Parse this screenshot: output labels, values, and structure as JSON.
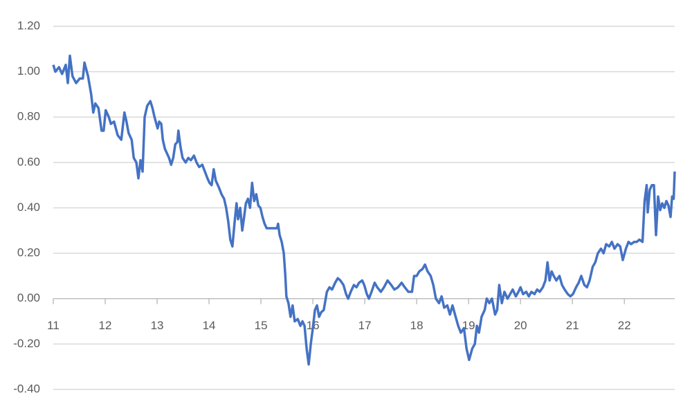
{
  "chart_data": {
    "type": "line",
    "x": [
      11.0,
      11.04,
      11.11,
      11.17,
      11.24,
      11.28,
      11.32,
      11.37,
      11.44,
      11.51,
      11.57,
      11.6,
      11.67,
      11.73,
      11.77,
      11.81,
      11.87,
      11.93,
      11.97,
      12.01,
      12.07,
      12.11,
      12.17,
      12.24,
      12.31,
      12.37,
      12.41,
      12.45,
      12.51,
      12.55,
      12.6,
      12.64,
      12.68,
      12.72,
      12.76,
      12.81,
      12.87,
      12.91,
      12.95,
      13.01,
      13.04,
      13.08,
      13.11,
      13.15,
      13.19,
      13.23,
      13.27,
      13.31,
      13.35,
      13.39,
      13.41,
      13.45,
      13.49,
      13.55,
      13.6,
      13.65,
      13.71,
      13.76,
      13.81,
      13.87,
      13.92,
      13.97,
      14.01,
      14.05,
      14.09,
      14.13,
      14.19,
      14.24,
      14.29,
      14.33,
      14.37,
      14.41,
      14.45,
      14.49,
      14.53,
      14.56,
      14.6,
      14.64,
      14.67,
      14.71,
      14.75,
      14.79,
      14.83,
      14.87,
      14.91,
      14.95,
      14.99,
      15.03,
      15.07,
      15.11,
      15.17,
      15.24,
      15.31,
      15.33,
      15.36,
      15.4,
      15.44,
      15.47,
      15.49,
      15.53,
      15.57,
      15.61,
      15.65,
      15.71,
      15.76,
      15.8,
      15.84,
      15.88,
      15.92,
      15.96,
      16.0,
      16.04,
      16.08,
      16.12,
      16.16,
      16.21,
      16.27,
      16.32,
      16.37,
      16.43,
      16.48,
      16.53,
      16.59,
      16.64,
      16.68,
      16.73,
      16.79,
      16.84,
      16.89,
      16.95,
      16.99,
      17.04,
      17.08,
      17.13,
      17.19,
      17.24,
      17.31,
      17.37,
      17.44,
      17.51,
      17.57,
      17.64,
      17.71,
      17.77,
      17.84,
      17.91,
      17.95,
      18.0,
      18.05,
      18.11,
      18.16,
      18.21,
      18.27,
      18.32,
      18.37,
      18.43,
      18.48,
      18.53,
      18.59,
      18.64,
      18.69,
      18.75,
      18.8,
      18.85,
      18.91,
      18.96,
      19.01,
      19.07,
      19.12,
      19.16,
      19.2,
      19.25,
      19.31,
      19.35,
      19.4,
      19.45,
      19.51,
      19.55,
      19.59,
      19.64,
      19.69,
      19.75,
      19.8,
      19.85,
      19.91,
      19.96,
      20.0,
      20.05,
      20.11,
      20.16,
      20.21,
      20.27,
      20.32,
      20.37,
      20.43,
      20.48,
      20.52,
      20.56,
      20.6,
      20.64,
      20.69,
      20.75,
      20.8,
      20.85,
      20.91,
      20.96,
      21.01,
      21.07,
      21.12,
      21.17,
      21.23,
      21.28,
      21.33,
      21.39,
      21.44,
      21.49,
      21.55,
      21.6,
      21.65,
      21.71,
      21.76,
      21.81,
      21.87,
      21.92,
      21.97,
      22.03,
      22.08,
      22.13,
      22.19,
      22.24,
      22.29,
      22.35,
      22.39,
      22.43,
      22.45,
      22.49,
      22.53,
      22.57,
      22.61,
      22.65,
      22.69,
      22.73,
      22.77,
      22.81,
      22.85,
      22.89,
      22.92,
      22.95,
      22.97
    ],
    "values": [
      1.03,
      1.0,
      1.02,
      0.99,
      1.03,
      0.95,
      1.07,
      0.98,
      0.95,
      0.97,
      0.97,
      1.04,
      0.98,
      0.9,
      0.82,
      0.86,
      0.84,
      0.74,
      0.74,
      0.83,
      0.8,
      0.77,
      0.78,
      0.72,
      0.7,
      0.82,
      0.78,
      0.73,
      0.7,
      0.62,
      0.6,
      0.53,
      0.61,
      0.56,
      0.8,
      0.85,
      0.87,
      0.84,
      0.8,
      0.75,
      0.78,
      0.77,
      0.7,
      0.66,
      0.64,
      0.62,
      0.59,
      0.62,
      0.68,
      0.69,
      0.74,
      0.67,
      0.62,
      0.6,
      0.62,
      0.61,
      0.63,
      0.6,
      0.58,
      0.59,
      0.56,
      0.53,
      0.51,
      0.5,
      0.57,
      0.52,
      0.49,
      0.46,
      0.44,
      0.4,
      0.34,
      0.26,
      0.23,
      0.33,
      0.42,
      0.35,
      0.4,
      0.3,
      0.35,
      0.42,
      0.44,
      0.4,
      0.51,
      0.43,
      0.46,
      0.41,
      0.4,
      0.36,
      0.33,
      0.31,
      0.31,
      0.31,
      0.31,
      0.33,
      0.28,
      0.25,
      0.2,
      0.1,
      0.01,
      -0.02,
      -0.08,
      -0.03,
      -0.1,
      -0.09,
      -0.12,
      -0.1,
      -0.12,
      -0.22,
      -0.29,
      -0.2,
      -0.13,
      -0.05,
      -0.03,
      -0.08,
      -0.06,
      -0.05,
      0.03,
      0.05,
      0.04,
      0.07,
      0.09,
      0.08,
      0.06,
      0.02,
      0.0,
      0.03,
      0.06,
      0.05,
      0.07,
      0.08,
      0.06,
      0.02,
      0.0,
      0.03,
      0.07,
      0.05,
      0.03,
      0.05,
      0.08,
      0.06,
      0.04,
      0.05,
      0.07,
      0.05,
      0.03,
      0.03,
      0.1,
      0.1,
      0.12,
      0.13,
      0.15,
      0.12,
      0.1,
      0.06,
      0.0,
      -0.02,
      0.01,
      -0.04,
      -0.03,
      -0.07,
      -0.03,
      -0.08,
      -0.12,
      -0.15,
      -0.13,
      -0.22,
      -0.27,
      -0.22,
      -0.2,
      -0.12,
      -0.15,
      -0.08,
      -0.05,
      0.0,
      -0.02,
      0.0,
      -0.07,
      -0.05,
      0.06,
      -0.02,
      0.03,
      0.0,
      0.02,
      0.04,
      0.01,
      0.03,
      0.05,
      0.02,
      0.03,
      0.01,
      0.03,
      0.02,
      0.04,
      0.03,
      0.05,
      0.08,
      0.16,
      0.08,
      0.12,
      0.1,
      0.08,
      0.1,
      0.06,
      0.04,
      0.02,
      0.01,
      0.02,
      0.05,
      0.07,
      0.1,
      0.06,
      0.05,
      0.08,
      0.14,
      0.16,
      0.2,
      0.22,
      0.2,
      0.24,
      0.23,
      0.25,
      0.22,
      0.24,
      0.23,
      0.17,
      0.22,
      0.25,
      0.24,
      0.25,
      0.25,
      0.26,
      0.25,
      0.43,
      0.5,
      0.38,
      0.48,
      0.5,
      0.5,
      0.28,
      0.45,
      0.39,
      0.42,
      0.4,
      0.43,
      0.41,
      0.36,
      0.45,
      0.44,
      0.56
    ],
    "color": "#4472c4",
    "xlim": [
      11,
      22.97
    ],
    "xticks": [
      11,
      12,
      13,
      14,
      15,
      16,
      17,
      18,
      19,
      20,
      21,
      22
    ],
    "ylim": [
      -0.4,
      1.2
    ],
    "yticks": [
      {
        "value": -0.4,
        "label": "-0.40"
      },
      {
        "value": -0.2,
        "label": "-0.20"
      },
      {
        "value": 0,
        "label": "0.00"
      },
      {
        "value": 0.2,
        "label": "0.20"
      },
      {
        "value": 0.4,
        "label": "0.40"
      },
      {
        "value": 0.6,
        "label": "0.60"
      },
      {
        "value": 0.8,
        "label": "0.80"
      },
      {
        "value": 1.0,
        "label": "1.00"
      },
      {
        "value": 1.2,
        "label": "1.20"
      }
    ],
    "grid": true
  }
}
